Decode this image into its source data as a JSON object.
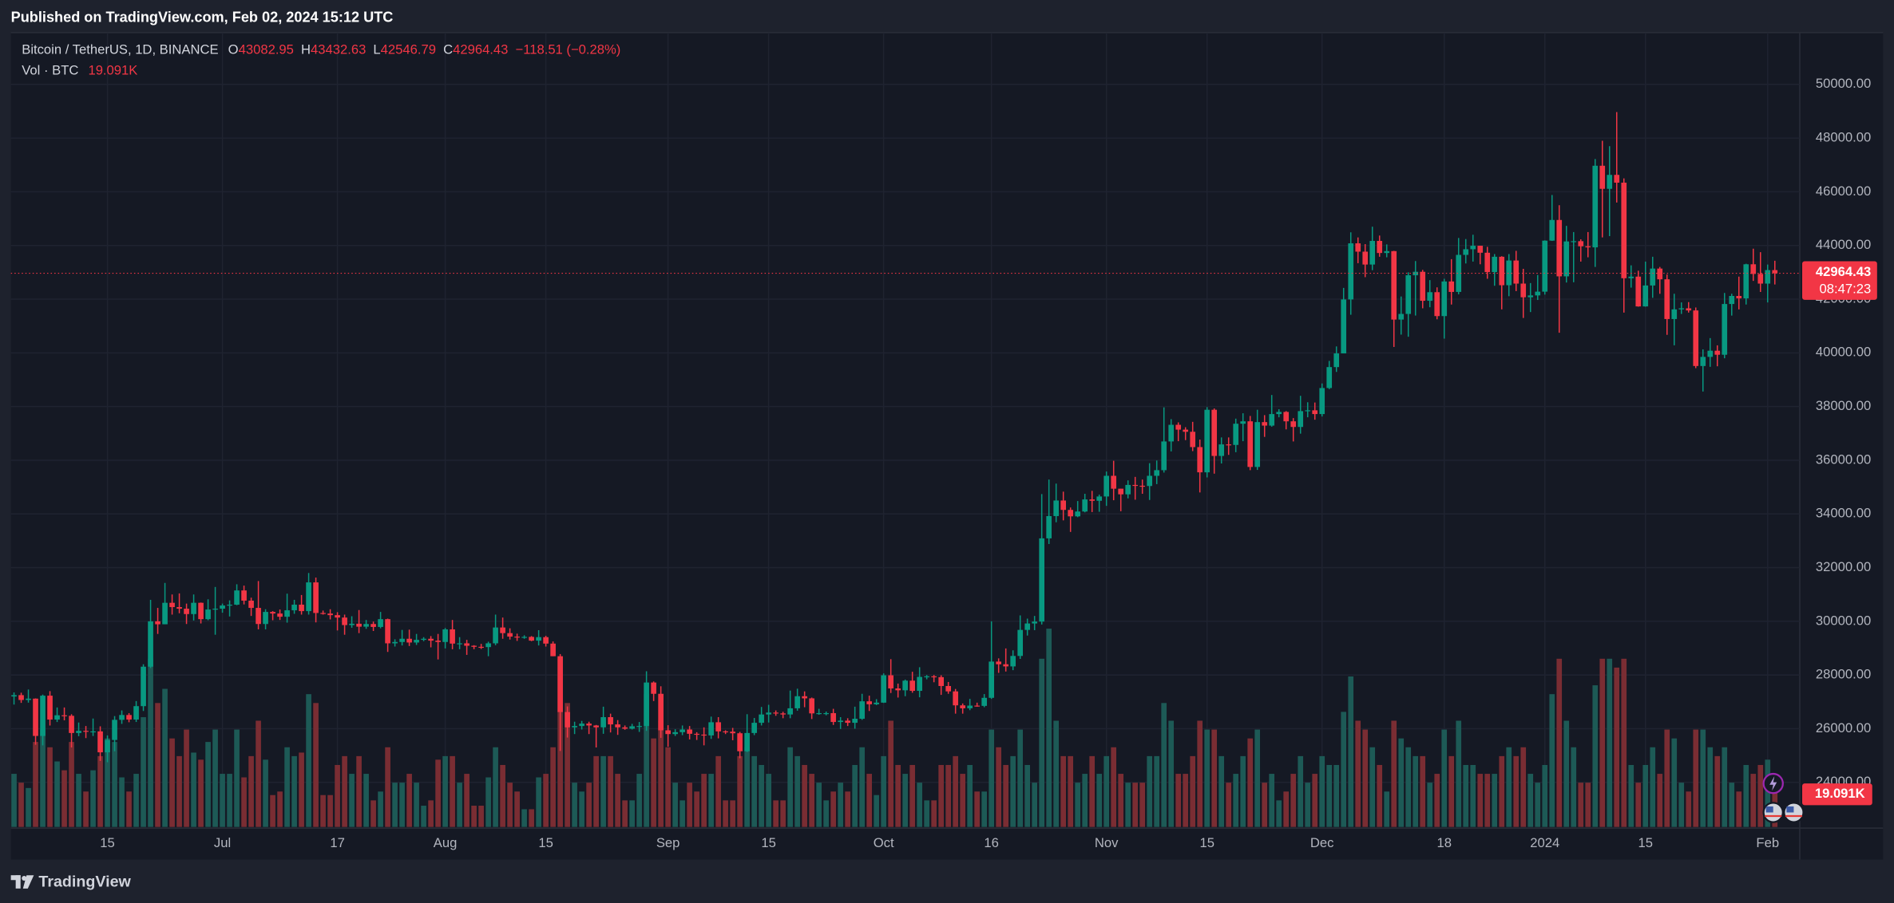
{
  "header": {
    "published": "Published on TradingView.com, Feb 02, 2024 15:12 UTC"
  },
  "footer": {
    "brand": "TradingView"
  },
  "chart_data": {
    "type": "candlestick",
    "symbol": "Bitcoin / TetherUS, 1D, BINANCE",
    "ohlc_prefixes": [
      "O",
      "H",
      "L",
      "C"
    ],
    "change_label": "−118.51 (−0.28%)",
    "volume_title": "Vol · BTC",
    "volume_last_label": "19.091K",
    "countdown": "08:47:23",
    "up_color": "#089981",
    "down_color": "#f23645",
    "volume_up_color": "#1d5a56",
    "volume_down_color": "#7a2d33",
    "grid": true,
    "ylim": [
      22340,
      51930
    ],
    "yticks": [
      {
        "value": 24000,
        "label": "24000.00"
      },
      {
        "value": 26000,
        "label": "26000.00"
      },
      {
        "value": 28000,
        "label": "28000.00"
      },
      {
        "value": 30000,
        "label": "30000.00"
      },
      {
        "value": 32000,
        "label": "32000.00"
      },
      {
        "value": 34000,
        "label": "34000.00"
      },
      {
        "value": 36000,
        "label": "36000.00"
      },
      {
        "value": 38000,
        "label": "38000.00"
      },
      {
        "value": 40000,
        "label": "40000.00"
      },
      {
        "value": 42000,
        "label": "42000.00"
      },
      {
        "value": 44000,
        "label": "44000.00"
      },
      {
        "value": 46000,
        "label": "46000.00"
      },
      {
        "value": 48000,
        "label": "48000.00"
      },
      {
        "value": 50000,
        "label": "50000.00"
      }
    ],
    "vlim": [
      0,
      120000
    ],
    "xticks": [
      {
        "value": 13,
        "label": "15"
      },
      {
        "value": 29,
        "label": "Jul"
      },
      {
        "value": 45,
        "label": "17"
      },
      {
        "value": 60,
        "label": "Aug"
      },
      {
        "value": 74,
        "label": "15"
      },
      {
        "value": 91,
        "label": "Sep"
      },
      {
        "value": 105,
        "label": "15"
      },
      {
        "value": 121,
        "label": "Oct"
      },
      {
        "value": 136,
        "label": "16"
      },
      {
        "value": 152,
        "label": "Nov"
      },
      {
        "value": 166,
        "label": "15"
      },
      {
        "value": 182,
        "label": "Dec"
      },
      {
        "value": 199,
        "label": "18"
      },
      {
        "value": 213,
        "label": "2024"
      },
      {
        "value": 227,
        "label": "15"
      },
      {
        "value": 244,
        "label": "Feb"
      }
    ],
    "open": [
      27200,
      27250,
      27070,
      27120,
      25730,
      27230,
      26340,
      26500,
      26480,
      25840,
      25920,
      25900,
      25900,
      25120,
      25580,
      26330,
      26510,
      26340,
      26840,
      28310,
      30000,
      29890,
      30690,
      30530,
      30470,
      30270,
      30690,
      30080,
      30440,
      30470,
      30590,
      30620,
      31150,
      30770,
      30500,
      29900,
      30350,
      30290,
      30170,
      30410,
      30620,
      30380,
      31450,
      30310,
      30290,
      30230,
      30140,
      29860,
      29910,
      29800,
      29900,
      29790,
      30080,
      29180,
      29230,
      29350,
      29210,
      29310,
      29350,
      29280,
      29230,
      29700,
      29170,
      29180,
      29090,
      29050,
      29040,
      29180,
      29770,
      29560,
      29430,
      29400,
      29420,
      29280,
      29410,
      29170,
      28700,
      26620,
      26050,
      26100,
      26190,
      26120,
      26050,
      26430,
      26160,
      26050,
      26000,
      26090,
      26100,
      27720,
      27300,
      25940,
      25800,
      25870,
      25970,
      25810,
      25780,
      25750,
      26240,
      25900,
      25890,
      25830,
      25160,
      25840,
      26220,
      26530,
      26600,
      26570,
      26530,
      26760,
      27210,
      27130,
      26570,
      26580,
      26580,
      26250,
      26300,
      26220,
      26370,
      27020,
      26910,
      26970,
      27990,
      27500,
      27430,
      27790,
      27410,
      27930,
      27950,
      27920,
      27590,
      27390,
      26870,
      26760,
      26860,
      26850,
      27150,
      28500,
      28400,
      28320,
      28710,
      29680,
      29920,
      29990,
      33090,
      33920,
      34500,
      34150,
      33910,
      34090,
      34540,
      34490,
      34650,
      35420,
      34940,
      34730,
      35080,
      35050,
      35040,
      35420,
      35630,
      36700,
      37320,
      37140,
      37060,
      36490,
      35550,
      37880,
      36160,
      36590,
      36570,
      37360,
      37450,
      35750,
      37420,
      37290,
      37720,
      37800,
      37450,
      37240,
      37830,
      37860,
      37720,
      38690,
      39470,
      39980,
      41990,
      44080,
      43770,
      43290,
      44170,
      43720,
      43790,
      41240,
      41450,
      42890,
      43020,
      41940,
      42260,
      41370,
      42660,
      42270,
      43650,
      43860,
      43990,
      43730,
      43010,
      43580,
      42520,
      43440,
      42580,
      42070,
      42140,
      42280,
      44180,
      44950,
      42850,
      44150,
      44160,
      43970,
      43930,
      46970,
      46110,
      46630,
      46340,
      42780,
      42840,
      41730,
      42510,
      43140,
      42740,
      41260,
      41620,
      41660,
      41580,
      39510,
      39850,
      40080,
      39930,
      41820,
      42120,
      42030,
      43300,
      42940,
      42580,
      43082.95
    ],
    "high": [
      27350,
      27340,
      27460,
      27130,
      27270,
      27400,
      26790,
      26790,
      26540,
      26230,
      26100,
      26380,
      26090,
      25750,
      26470,
      26680,
      26580,
      27030,
      28400,
      30800,
      30500,
      31430,
      31000,
      31040,
      30660,
      31000,
      30700,
      30820,
      31280,
      30660,
      30780,
      31380,
      31330,
      30880,
      31500,
      30450,
      30380,
      30440,
      31030,
      30800,
      30980,
      31800,
      31630,
      30400,
      30450,
      30340,
      30250,
      30190,
      30420,
      30050,
      29990,
      30350,
      30100,
      29330,
      29680,
      29690,
      29530,
      29410,
      29450,
      29530,
      29750,
      30050,
      29410,
      29310,
      29110,
      29160,
      29240,
      30250,
      30140,
      29740,
      29540,
      29480,
      29450,
      29670,
      29460,
      29250,
      28780,
      26830,
      26260,
      26290,
      26260,
      26140,
      26820,
      26560,
      26320,
      26120,
      26180,
      26250,
      28140,
      27760,
      27580,
      26130,
      25980,
      26120,
      26100,
      25870,
      26050,
      26450,
      26430,
      25940,
      26030,
      25880,
      26540,
      26400,
      26810,
      26890,
      26680,
      26630,
      27420,
      27490,
      27390,
      27160,
      26740,
      26640,
      26740,
      26430,
      26390,
      26820,
      27300,
      27230,
      27100,
      28060,
      28590,
      27680,
      27830,
      28120,
      28290,
      28000,
      28000,
      27990,
      27740,
      27480,
      26940,
      27110,
      26970,
      27290,
      30000,
      28620,
      28990,
      28920,
      30220,
      30100,
      30200,
      34740,
      35280,
      35130,
      34830,
      34240,
      34480,
      34750,
      34860,
      34720,
      35580,
      35980,
      34940,
      35250,
      35380,
      35280,
      35890,
      35990,
      37970,
      37530,
      37410,
      37230,
      37430,
      36770,
      37980,
      37930,
      36850,
      36850,
      37550,
      37750,
      37650,
      37880,
      37680,
      38430,
      37900,
      37830,
      37570,
      38400,
      38160,
      38150,
      38860,
      39700,
      40240,
      42420,
      44490,
      44300,
      44050,
      44700,
      44370,
      44040,
      43800,
      42100,
      43000,
      43420,
      43090,
      42710,
      42440,
      42760,
      43490,
      44280,
      44240,
      44400,
      43990,
      43950,
      43680,
      43600,
      43680,
      43800,
      43130,
      42600,
      42900,
      44190,
      45880,
      45500,
      44730,
      44500,
      44230,
      44500,
      47220,
      47900,
      47700,
      48970,
      46500,
      43260,
      43060,
      43400,
      43580,
      43200,
      42920,
      42200,
      41880,
      41890,
      41690,
      40130,
      40550,
      40280,
      42230,
      42200,
      42840,
      43320,
      43880,
      43750,
      43290,
      43432.63
    ],
    "low": [
      26900,
      26960,
      26970,
      25400,
      25380,
      26120,
      26250,
      26310,
      25300,
      25720,
      25650,
      25730,
      24800,
      24750,
      25160,
      26180,
      26240,
      26250,
      26660,
      28260,
      29530,
      29890,
      30250,
      30300,
      29900,
      30030,
      29920,
      30040,
      29500,
      30320,
      30180,
      30600,
      30630,
      30200,
      29700,
      29700,
      30040,
      30050,
      29950,
      30280,
      30250,
      30250,
      29960,
      30250,
      30070,
      29660,
      29500,
      29760,
      29560,
      29720,
      29640,
      29740,
      28860,
      29060,
      29100,
      29080,
      29120,
      29260,
      29030,
      28580,
      28990,
      28960,
      28960,
      28750,
      28960,
      28970,
      28700,
      29110,
      29350,
      29320,
      29270,
      29350,
      29260,
      29100,
      29060,
      28700,
      25170,
      25670,
      25800,
      25970,
      25800,
      25300,
      25810,
      25860,
      25770,
      25960,
      25970,
      25880,
      25920,
      27030,
      25660,
      25330,
      25730,
      25760,
      25600,
      25580,
      25380,
      25620,
      25640,
      25800,
      25570,
      24900,
      25130,
      25760,
      26120,
      26230,
      26480,
      26390,
      26390,
      26670,
      26800,
      26360,
      26520,
      26500,
      26140,
      25990,
      26100,
      26000,
      26330,
      26660,
      26880,
      26960,
      27330,
      27160,
      27210,
      27340,
      27170,
      27840,
      27730,
      27260,
      27300,
      26560,
      26560,
      26690,
      26820,
      26800,
      27110,
      28080,
      28130,
      28180,
      28600,
      29470,
      29670,
      29880,
      32880,
      33690,
      33760,
      33330,
      33880,
      34060,
      34070,
      34080,
      34300,
      34510,
      34100,
      34580,
      34530,
      34750,
      34520,
      35110,
      35540,
      36330,
      36710,
      36750,
      36340,
      34800,
      35360,
      35500,
      35880,
      36200,
      36300,
      36710,
      35630,
      35640,
      36870,
      37250,
      37600,
      37150,
      36700,
      36990,
      37600,
      37510,
      37630,
      38650,
      39290,
      39980,
      41420,
      43340,
      42820,
      43080,
      43580,
      43560,
      40220,
      40680,
      40600,
      41390,
      41660,
      41700,
      41250,
      40530,
      41800,
      42180,
      43330,
      43400,
      43300,
      42760,
      42500,
      41620,
      42110,
      42300,
      41300,
      41520,
      41970,
      42170,
      44170,
      40750,
      42620,
      42630,
      43400,
      43560,
      43200,
      44300,
      44350,
      45600,
      41500,
      42430,
      41720,
      41720,
      42050,
      42200,
      40670,
      40280,
      41450,
      41500,
      39430,
      38560,
      39480,
      39500,
      39800,
      41390,
      41620,
      41800,
      42680,
      42270,
      41880,
      42546.79
    ],
    "close": [
      27250,
      27070,
      27120,
      25730,
      27230,
      26340,
      26500,
      26480,
      25840,
      25920,
      25900,
      25900,
      25120,
      25580,
      26330,
      26510,
      26340,
      26840,
      28310,
      30000,
      29890,
      30690,
      30530,
      30470,
      30270,
      30690,
      30080,
      30440,
      30470,
      30590,
      30620,
      31150,
      30770,
      30500,
      29900,
      30350,
      30290,
      30170,
      30410,
      30620,
      30380,
      31450,
      30310,
      30290,
      30230,
      30140,
      29860,
      29910,
      29800,
      29900,
      29790,
      30080,
      29180,
      29230,
      29350,
      29210,
      29310,
      29350,
      29280,
      29230,
      29700,
      29170,
      29180,
      29090,
      29050,
      29040,
      29180,
      29770,
      29560,
      29430,
      29400,
      29420,
      29280,
      29410,
      29170,
      28700,
      26620,
      26050,
      26100,
      26190,
      26120,
      26050,
      26430,
      26160,
      26050,
      26000,
      26090,
      26100,
      27720,
      27300,
      25940,
      25800,
      25870,
      25970,
      25810,
      25780,
      25750,
      26240,
      25900,
      25890,
      25830,
      25160,
      25840,
      26220,
      26530,
      26600,
      26570,
      26530,
      26760,
      27210,
      27130,
      26570,
      26580,
      26580,
      26250,
      26300,
      26220,
      26370,
      27020,
      26910,
      26970,
      27990,
      27500,
      27430,
      27790,
      27410,
      27930,
      27950,
      27920,
      27590,
      27390,
      26870,
      26760,
      26860,
      26850,
      27150,
      28500,
      28400,
      28320,
      28710,
      29680,
      29920,
      29990,
      33090,
      33920,
      34500,
      34150,
      33910,
      34090,
      34540,
      34490,
      34650,
      35420,
      34940,
      34730,
      35080,
      35050,
      35040,
      35420,
      35630,
      36700,
      37320,
      37140,
      37060,
      36490,
      35550,
      37880,
      36160,
      36590,
      36570,
      37360,
      37450,
      35750,
      37420,
      37290,
      37720,
      37800,
      37450,
      37240,
      37830,
      37860,
      37720,
      38690,
      39470,
      39980,
      41990,
      44080,
      43770,
      43290,
      44170,
      43720,
      43790,
      41240,
      41450,
      42890,
      43020,
      41940,
      42260,
      41370,
      42660,
      42270,
      43650,
      43860,
      43990,
      43730,
      43010,
      43580,
      42520,
      43440,
      42580,
      42070,
      42140,
      42280,
      44180,
      44950,
      42850,
      44150,
      44160,
      43970,
      43930,
      46970,
      46110,
      46630,
      46340,
      42780,
      42840,
      41730,
      42510,
      43140,
      42740,
      41260,
      41620,
      41660,
      41580,
      39510,
      39850,
      40080,
      39930,
      41820,
      42120,
      42030,
      43300,
      42940,
      42580,
      43082.95,
      42964.43
    ],
    "volume": [
      30000,
      25000,
      22000,
      48000,
      55000,
      45000,
      37000,
      32000,
      48000,
      30000,
      20000,
      32000,
      40000,
      50000,
      48000,
      28000,
      20000,
      30000,
      62000,
      95000,
      70000,
      78000,
      50000,
      40000,
      55000,
      42000,
      38000,
      48000,
      55000,
      30000,
      30000,
      55000,
      28000,
      40000,
      60000,
      38000,
      18000,
      20000,
      45000,
      40000,
      42000,
      75000,
      70000,
      18000,
      18000,
      35000,
      40000,
      30000,
      40000,
      30000,
      15000,
      20000,
      45000,
      25000,
      25000,
      30000,
      25000,
      12000,
      15000,
      38000,
      40000,
      40000,
      25000,
      30000,
      12000,
      12000,
      28000,
      45000,
      35000,
      25000,
      20000,
      10000,
      10000,
      28000,
      30000,
      45000,
      95000,
      70000,
      25000,
      20000,
      25000,
      40000,
      40000,
      40000,
      30000,
      15000,
      15000,
      30000,
      75000,
      50000,
      60000,
      45000,
      25000,
      15000,
      25000,
      20000,
      30000,
      30000,
      40000,
      15000,
      15000,
      40000,
      45000,
      40000,
      35000,
      30000,
      15000,
      15000,
      45000,
      40000,
      35000,
      30000,
      25000,
      15000,
      20000,
      25000,
      20000,
      35000,
      45000,
      30000,
      18000,
      40000,
      60000,
      35000,
      30000,
      35000,
      25000,
      15000,
      15000,
      35000,
      35000,
      40000,
      30000,
      35000,
      20000,
      20000,
      55000,
      45000,
      35000,
      40000,
      55000,
      35000,
      25000,
      95000,
      112000,
      60000,
      40000,
      40000,
      25000,
      30000,
      40000,
      30000,
      40000,
      45000,
      30000,
      25000,
      25000,
      25000,
      40000,
      40000,
      70000,
      60000,
      30000,
      30000,
      40000,
      60000,
      55000,
      55000,
      40000,
      25000,
      30000,
      40000,
      50000,
      55000,
      25000,
      30000,
      15000,
      20000,
      30000,
      40000,
      25000,
      30000,
      40000,
      35000,
      35000,
      65000,
      85000,
      60000,
      55000,
      45000,
      35000,
      20000,
      60000,
      50000,
      45000,
      40000,
      40000,
      25000,
      30000,
      55000,
      40000,
      60000,
      35000,
      35000,
      30000,
      30000,
      30000,
      40000,
      45000,
      40000,
      45000,
      30000,
      25000,
      35000,
      75000,
      95000,
      60000,
      45000,
      25000,
      25000,
      80000,
      95000,
      95000,
      90000,
      95000,
      35000,
      25000,
      35000,
      45000,
      30000,
      55000,
      50000,
      25000,
      20000,
      55000,
      55000,
      45000,
      40000,
      45000,
      25000,
      20000,
      35000,
      30000,
      35000,
      38000,
      19091
    ]
  }
}
